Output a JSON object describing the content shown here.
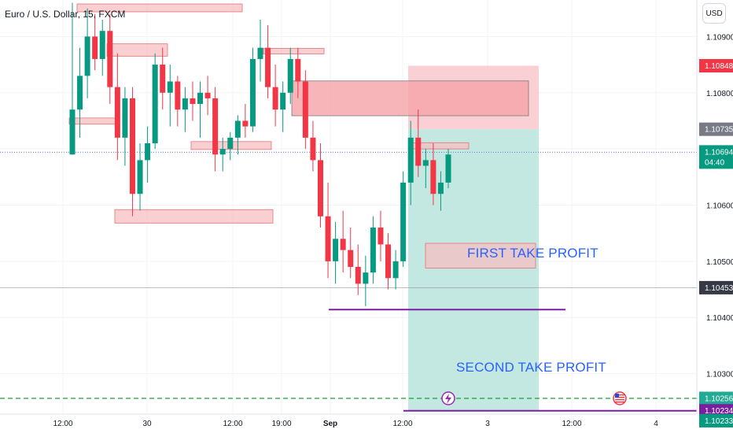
{
  "header": {
    "symbol_title": "Euro / U.S. Dollar, 15, FXCM"
  },
  "toolbar": {
    "currency_button": "USD"
  },
  "annotations": {
    "first_tp": "FIRST TAKE PROFIT",
    "second_tp": "SECOND TAKE PROFIT"
  },
  "colors": {
    "up": "#089981",
    "down": "#f23645",
    "zone_fill": "#f7a9ad",
    "zone_stroke": "#e57373",
    "target_fill": "#b9e4dc",
    "stop_fill": "#f9c8cc",
    "purple": "#7b1fa2",
    "dashed_green": "#1b9e3e",
    "text_blue": "#2962ff"
  },
  "chart_data": {
    "type": "candlestick",
    "title": "Euro / U.S. Dollar, 15, FXCM",
    "ylim": [
      1.10228,
      1.10965
    ],
    "y_ticks": [
      "1.10300",
      "1.10400",
      "1.10500",
      "1.10600",
      "1.10700",
      "1.10800",
      "1.10900"
    ],
    "x_ticks": [
      "12:00",
      "30",
      "12:00",
      "19:00",
      "Sep",
      "12:00",
      "3",
      "12:00",
      "4"
    ],
    "price_labels": [
      {
        "value": "1.10848",
        "kind": "stop"
      },
      {
        "value": "1.10735",
        "kind": "entry"
      },
      {
        "value": "1.10694",
        "kind": "last",
        "countdown": "04:40"
      },
      {
        "value": "1.10453",
        "kind": "line"
      },
      {
        "value": "1.10256",
        "kind": "tp"
      },
      {
        "value": "1.10234",
        "kind": "purple"
      },
      {
        "value": "1.10233",
        "kind": "green"
      }
    ],
    "series": [
      {
        "values": [
          [
            1.1069,
            1.1096,
            1.1069,
            1.1077
          ],
          [
            1.1077,
            1.1088,
            1.1072,
            1.1083
          ],
          [
            1.1083,
            1.1095,
            1.1079,
            1.109
          ],
          [
            1.109,
            1.1094,
            1.1084,
            1.1086
          ],
          [
            1.1086,
            1.1093,
            1.1083,
            1.1091
          ],
          [
            1.1091,
            1.1094,
            1.1078,
            1.1081
          ],
          [
            1.1081,
            1.1087,
            1.1068,
            1.1072
          ],
          [
            1.1072,
            1.1081,
            1.1067,
            1.1079
          ],
          [
            1.1079,
            1.1081,
            1.1058,
            1.1062
          ],
          [
            1.1062,
            1.1071,
            1.1059,
            1.1068
          ],
          [
            1.1068,
            1.1074,
            1.1064,
            1.1071
          ],
          [
            1.1071,
            1.1087,
            1.107,
            1.1085
          ],
          [
            1.1085,
            1.1088,
            1.1077,
            1.108
          ],
          [
            1.108,
            1.1085,
            1.1074,
            1.1082
          ],
          [
            1.1082,
            1.1083,
            1.1074,
            1.1077
          ],
          [
            1.1077,
            1.1081,
            1.1073,
            1.1079
          ],
          [
            1.1079,
            1.1082,
            1.1075,
            1.1078
          ],
          [
            1.1078,
            1.1082,
            1.1072,
            1.108
          ],
          [
            1.108,
            1.1083,
            1.1076,
            1.1079
          ],
          [
            1.1079,
            1.1081,
            1.1066,
            1.1069
          ],
          [
            1.1069,
            1.1072,
            1.1066,
            1.107
          ],
          [
            1.107,
            1.1073,
            1.1068,
            1.1072
          ],
          [
            1.1072,
            1.1076,
            1.1069,
            1.1075
          ],
          [
            1.1075,
            1.1078,
            1.1072,
            1.1074
          ],
          [
            1.1074,
            1.1088,
            1.1073,
            1.1086
          ],
          [
            1.1086,
            1.1093,
            1.1082,
            1.1088
          ],
          [
            1.1088,
            1.1092,
            1.1079,
            1.1081
          ],
          [
            1.1081,
            1.1085,
            1.1074,
            1.1077
          ],
          [
            1.1077,
            1.1082,
            1.1073,
            1.108
          ],
          [
            1.108,
            1.1088,
            1.1078,
            1.1086
          ],
          [
            1.1086,
            1.1088,
            1.1079,
            1.1082
          ],
          [
            1.1082,
            1.1084,
            1.107,
            1.1072
          ],
          [
            1.1072,
            1.1075,
            1.1066,
            1.1068
          ],
          [
            1.1068,
            1.1071,
            1.1056,
            1.1058
          ],
          [
            1.1058,
            1.1064,
            1.1047,
            1.105
          ],
          [
            1.105,
            1.1057,
            1.1046,
            1.1054
          ],
          [
            1.1054,
            1.1059,
            1.1048,
            1.1052
          ],
          [
            1.1052,
            1.1056,
            1.1047,
            1.1049
          ],
          [
            1.1049,
            1.1053,
            1.1044,
            1.1046
          ],
          [
            1.1046,
            1.1051,
            1.1042,
            1.1048
          ],
          [
            1.1048,
            1.1058,
            1.1046,
            1.1056
          ],
          [
            1.1056,
            1.1059,
            1.105,
            1.1053
          ],
          [
            1.1053,
            1.1055,
            1.1045,
            1.1047
          ],
          [
            1.1047,
            1.1052,
            1.1045,
            1.105
          ],
          [
            1.105,
            1.1066,
            1.1049,
            1.1064
          ],
          [
            1.1064,
            1.1075,
            1.106,
            1.1072
          ],
          [
            1.1072,
            1.1077,
            1.1065,
            1.1067
          ],
          [
            1.1067,
            1.107,
            1.1063,
            1.1068
          ],
          [
            1.1068,
            1.1071,
            1.106,
            1.1062
          ],
          [
            1.1062,
            1.1066,
            1.1059,
            1.1064
          ],
          [
            1.1064,
            1.107,
            1.1063,
            1.1069
          ]
        ]
      }
    ],
    "zones": [
      {
        "label": "supply_top",
        "y_top": 1.10958,
        "y_bottom": 1.10944
      },
      {
        "label": "mid_zone_1",
        "y_top": 1.10887,
        "y_bottom": 1.10865
      },
      {
        "label": "mid_zone_2",
        "y_top": 1.10879,
        "y_bottom": 1.10869
      },
      {
        "label": "big_zone",
        "y_top": 1.10821,
        "y_bottom": 1.10759
      },
      {
        "label": "entry_small",
        "y_top": 1.10711,
        "y_bottom": 1.107
      },
      {
        "label": "left_small",
        "y_top": 1.10755,
        "y_bottom": 1.10744
      },
      {
        "label": "demand_block",
        "y_top": 1.10713,
        "y_bottom": 1.10699
      },
      {
        "label": "low_zone",
        "y_top": 1.10592,
        "y_bottom": 1.10568
      },
      {
        "label": "tp1_zone",
        "y_top": 1.10532,
        "y_bottom": 1.10488
      }
    ],
    "lines": [
      {
        "label": "support",
        "y": 1.10414
      },
      {
        "label": "purple_low",
        "y": 1.10234
      },
      {
        "label": "dashed_tp",
        "y": 1.10256
      },
      {
        "label": "gray_1",
        "y": 1.10453
      },
      {
        "label": "dotted_last",
        "y": 1.10694
      }
    ]
  }
}
